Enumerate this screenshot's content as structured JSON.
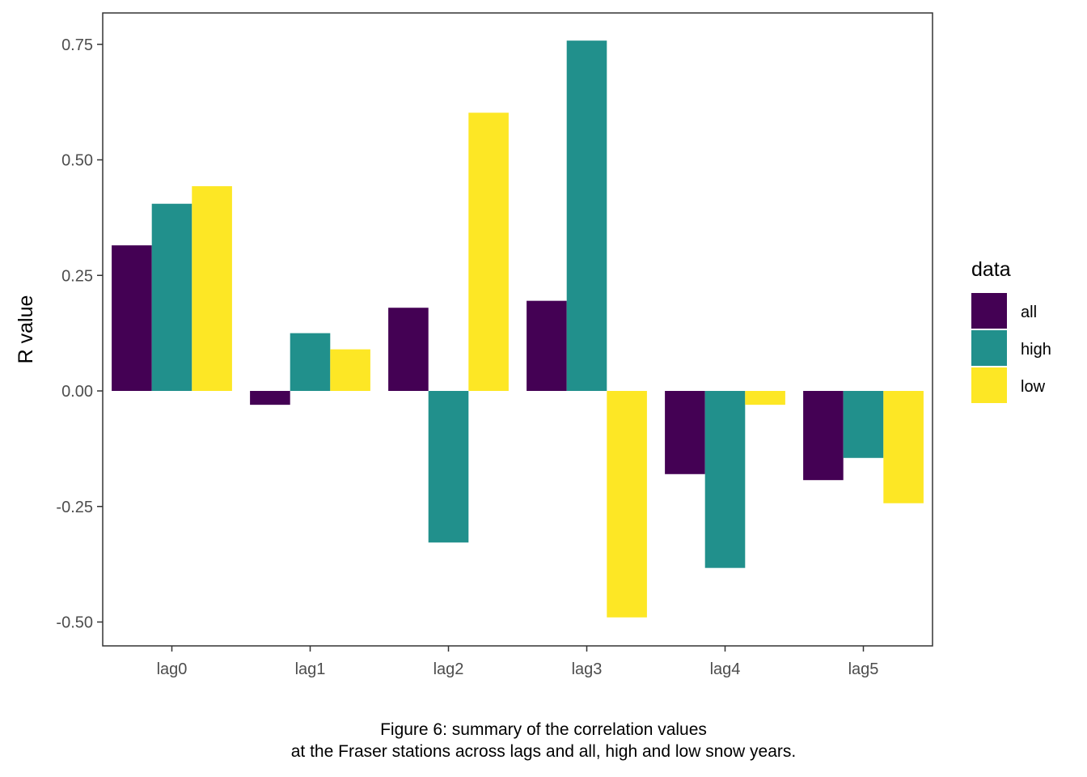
{
  "chart_data": {
    "type": "bar",
    "categories": [
      "lag0",
      "lag1",
      "lag2",
      "lag3",
      "lag4",
      "lag5"
    ],
    "series": [
      {
        "name": "all",
        "color": "#440154",
        "values": [
          0.315,
          -0.03,
          0.18,
          0.195,
          -0.18,
          -0.193
        ]
      },
      {
        "name": "high",
        "color": "#21908C",
        "values": [
          0.405,
          0.125,
          -0.328,
          0.758,
          -0.383,
          -0.145
        ]
      },
      {
        "name": "low",
        "color": "#FDE725",
        "values": [
          0.443,
          0.09,
          0.602,
          -0.49,
          -0.03,
          -0.243
        ]
      }
    ],
    "ylabel": "R value",
    "xlabel": "",
    "ylim": [
      -0.55,
      0.8
    ],
    "yticks": [
      "-0.50",
      "-0.25",
      "0.00",
      "0.25",
      "0.50",
      "0.75"
    ],
    "grid": false,
    "legend": {
      "title": "data",
      "position": "right"
    }
  },
  "caption": {
    "line1": "Figure 6: summary of the correlation values",
    "line2": "at the Fraser stations across lags and all, high and low snow years."
  }
}
